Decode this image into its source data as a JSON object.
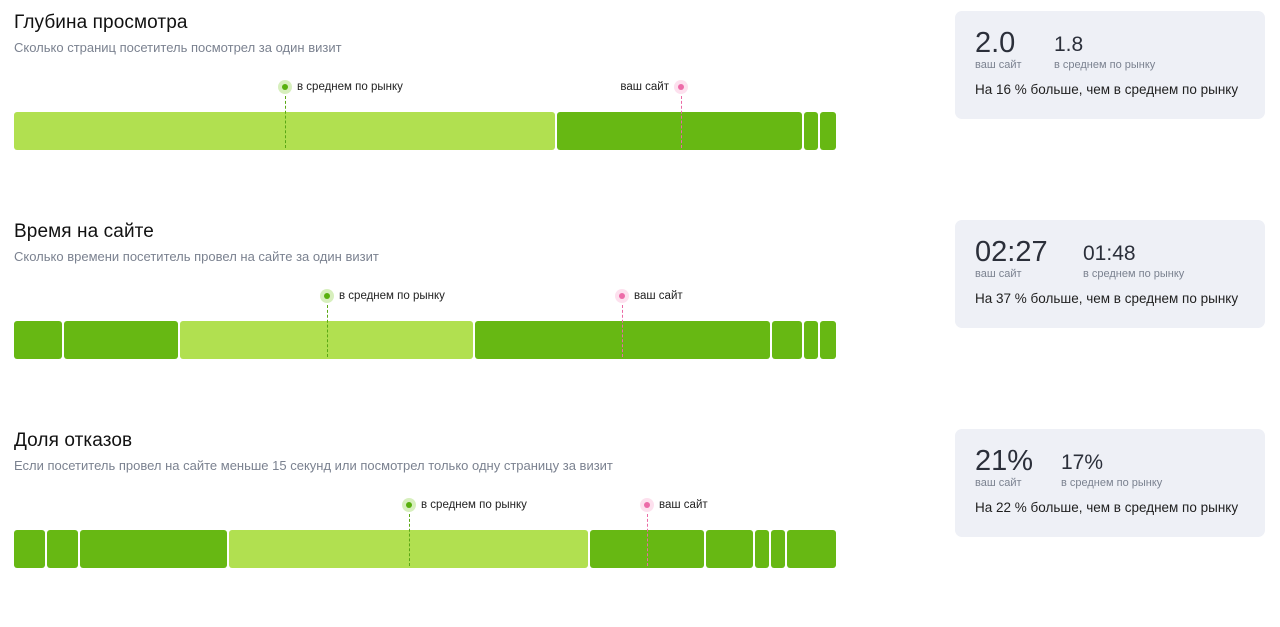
{
  "metrics": [
    {
      "title": "Глубина просмотра",
      "subtitle": "Сколько страниц посетитель посмотрел за один визит",
      "market_label": "в среднем по рынку",
      "site_label": "ваш сайт",
      "your_value": "2.0",
      "your_caption": "ваш сайт",
      "market_value": "1.8",
      "market_caption": "в среднем по рынку",
      "comparison": "На 16 % больше, чем в среднем по рынку"
    },
    {
      "title": "Время на сайте",
      "subtitle": "Сколько времени посетитель провел на сайте за один визит",
      "market_label": "в среднем по рынку",
      "site_label": "ваш сайт",
      "your_value": "02:27",
      "your_caption": "ваш сайт",
      "market_value": "01:48",
      "market_caption": "в среднем по рынку",
      "comparison": "На 37 % больше, чем в среднем по рынку"
    },
    {
      "title": "Доля отказов",
      "subtitle": "Если посетитель провел на сайте меньше 15 секунд или посмотрел только одну страницу за визит",
      "market_label": "в среднем по рынку",
      "site_label": "ваш сайт",
      "your_value": "21%",
      "your_caption": "ваш сайт",
      "market_value": "17%",
      "market_caption": "в среднем по рынку",
      "comparison": "На 22 % больше, чем в среднем по рынку"
    }
  ],
  "colors": {
    "segment_dark": "#67b813",
    "segment_light": "#b1e050",
    "market_marker": "#58b00e",
    "site_marker": "#ec6ba8",
    "card_background": "#eef0f6"
  }
}
